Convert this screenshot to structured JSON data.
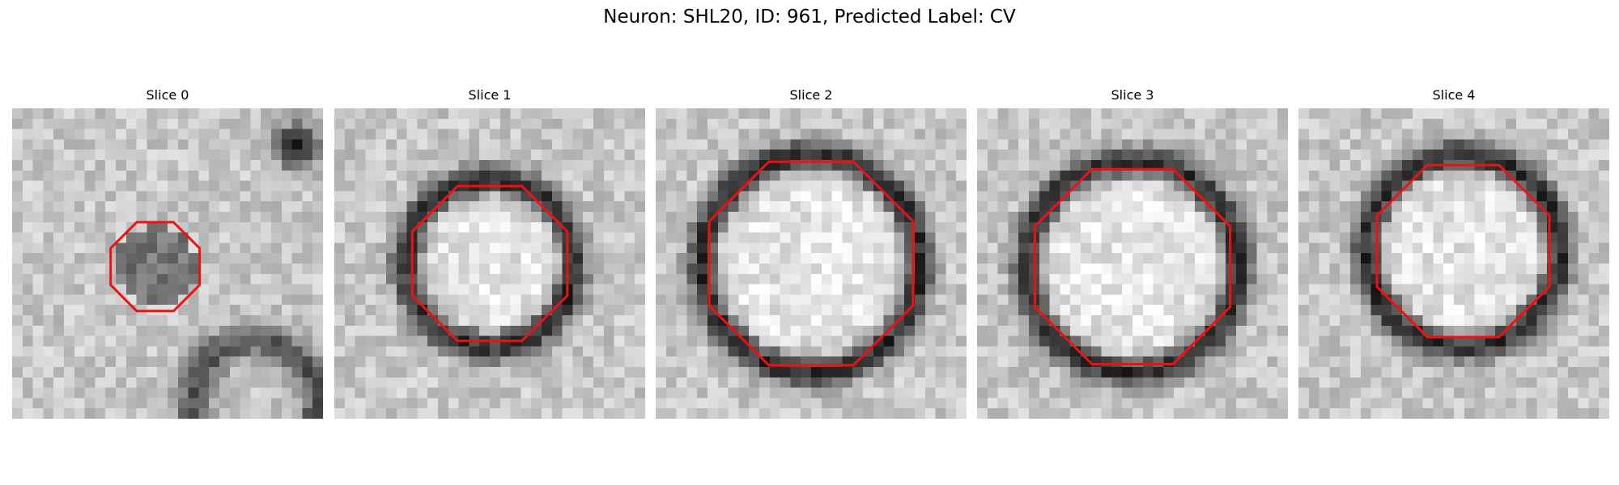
{
  "figure": {
    "title": "Neuron: SHL20, ID: 961, Predicted Label: CV"
  },
  "colors": {
    "contour": "#ee1111",
    "background": "#ffffff"
  },
  "panels": [
    {
      "title": "Slice 0",
      "ring_radius": 0.0,
      "blob_radius": 0.13,
      "blob_darkness": 0.32,
      "dark_ring_at": [
        0.92,
        0.12
      ],
      "lower_ring": true,
      "contour_radius": 0.155,
      "contour_cx": 0.46,
      "contour_cy": 0.51
    },
    {
      "title": "Slice 1",
      "ring_radius": 0.27,
      "blob_radius": 0.0,
      "blob_darkness": 0.0,
      "dark_ring_at": null,
      "lower_ring": false,
      "contour_radius": 0.27,
      "contour_cx": 0.5,
      "contour_cy": 0.5
    },
    {
      "title": "Slice 2",
      "ring_radius": 0.35,
      "blob_radius": 0.0,
      "blob_darkness": 0.0,
      "dark_ring_at": null,
      "lower_ring": false,
      "contour_radius": 0.355,
      "contour_cx": 0.5,
      "contour_cy": 0.5
    },
    {
      "title": "Slice 3",
      "ring_radius": 0.34,
      "blob_radius": 0.0,
      "blob_darkness": 0.0,
      "dark_ring_at": null,
      "lower_ring": false,
      "contour_radius": 0.34,
      "contour_cx": 0.5,
      "contour_cy": 0.51
    },
    {
      "title": "Slice 4",
      "ring_radius": 0.31,
      "blob_radius": 0.0,
      "blob_darkness": 0.0,
      "dark_ring_at": null,
      "lower_ring": false,
      "contour_radius": 0.3,
      "contour_cx": 0.53,
      "contour_cy": 0.46
    }
  ]
}
